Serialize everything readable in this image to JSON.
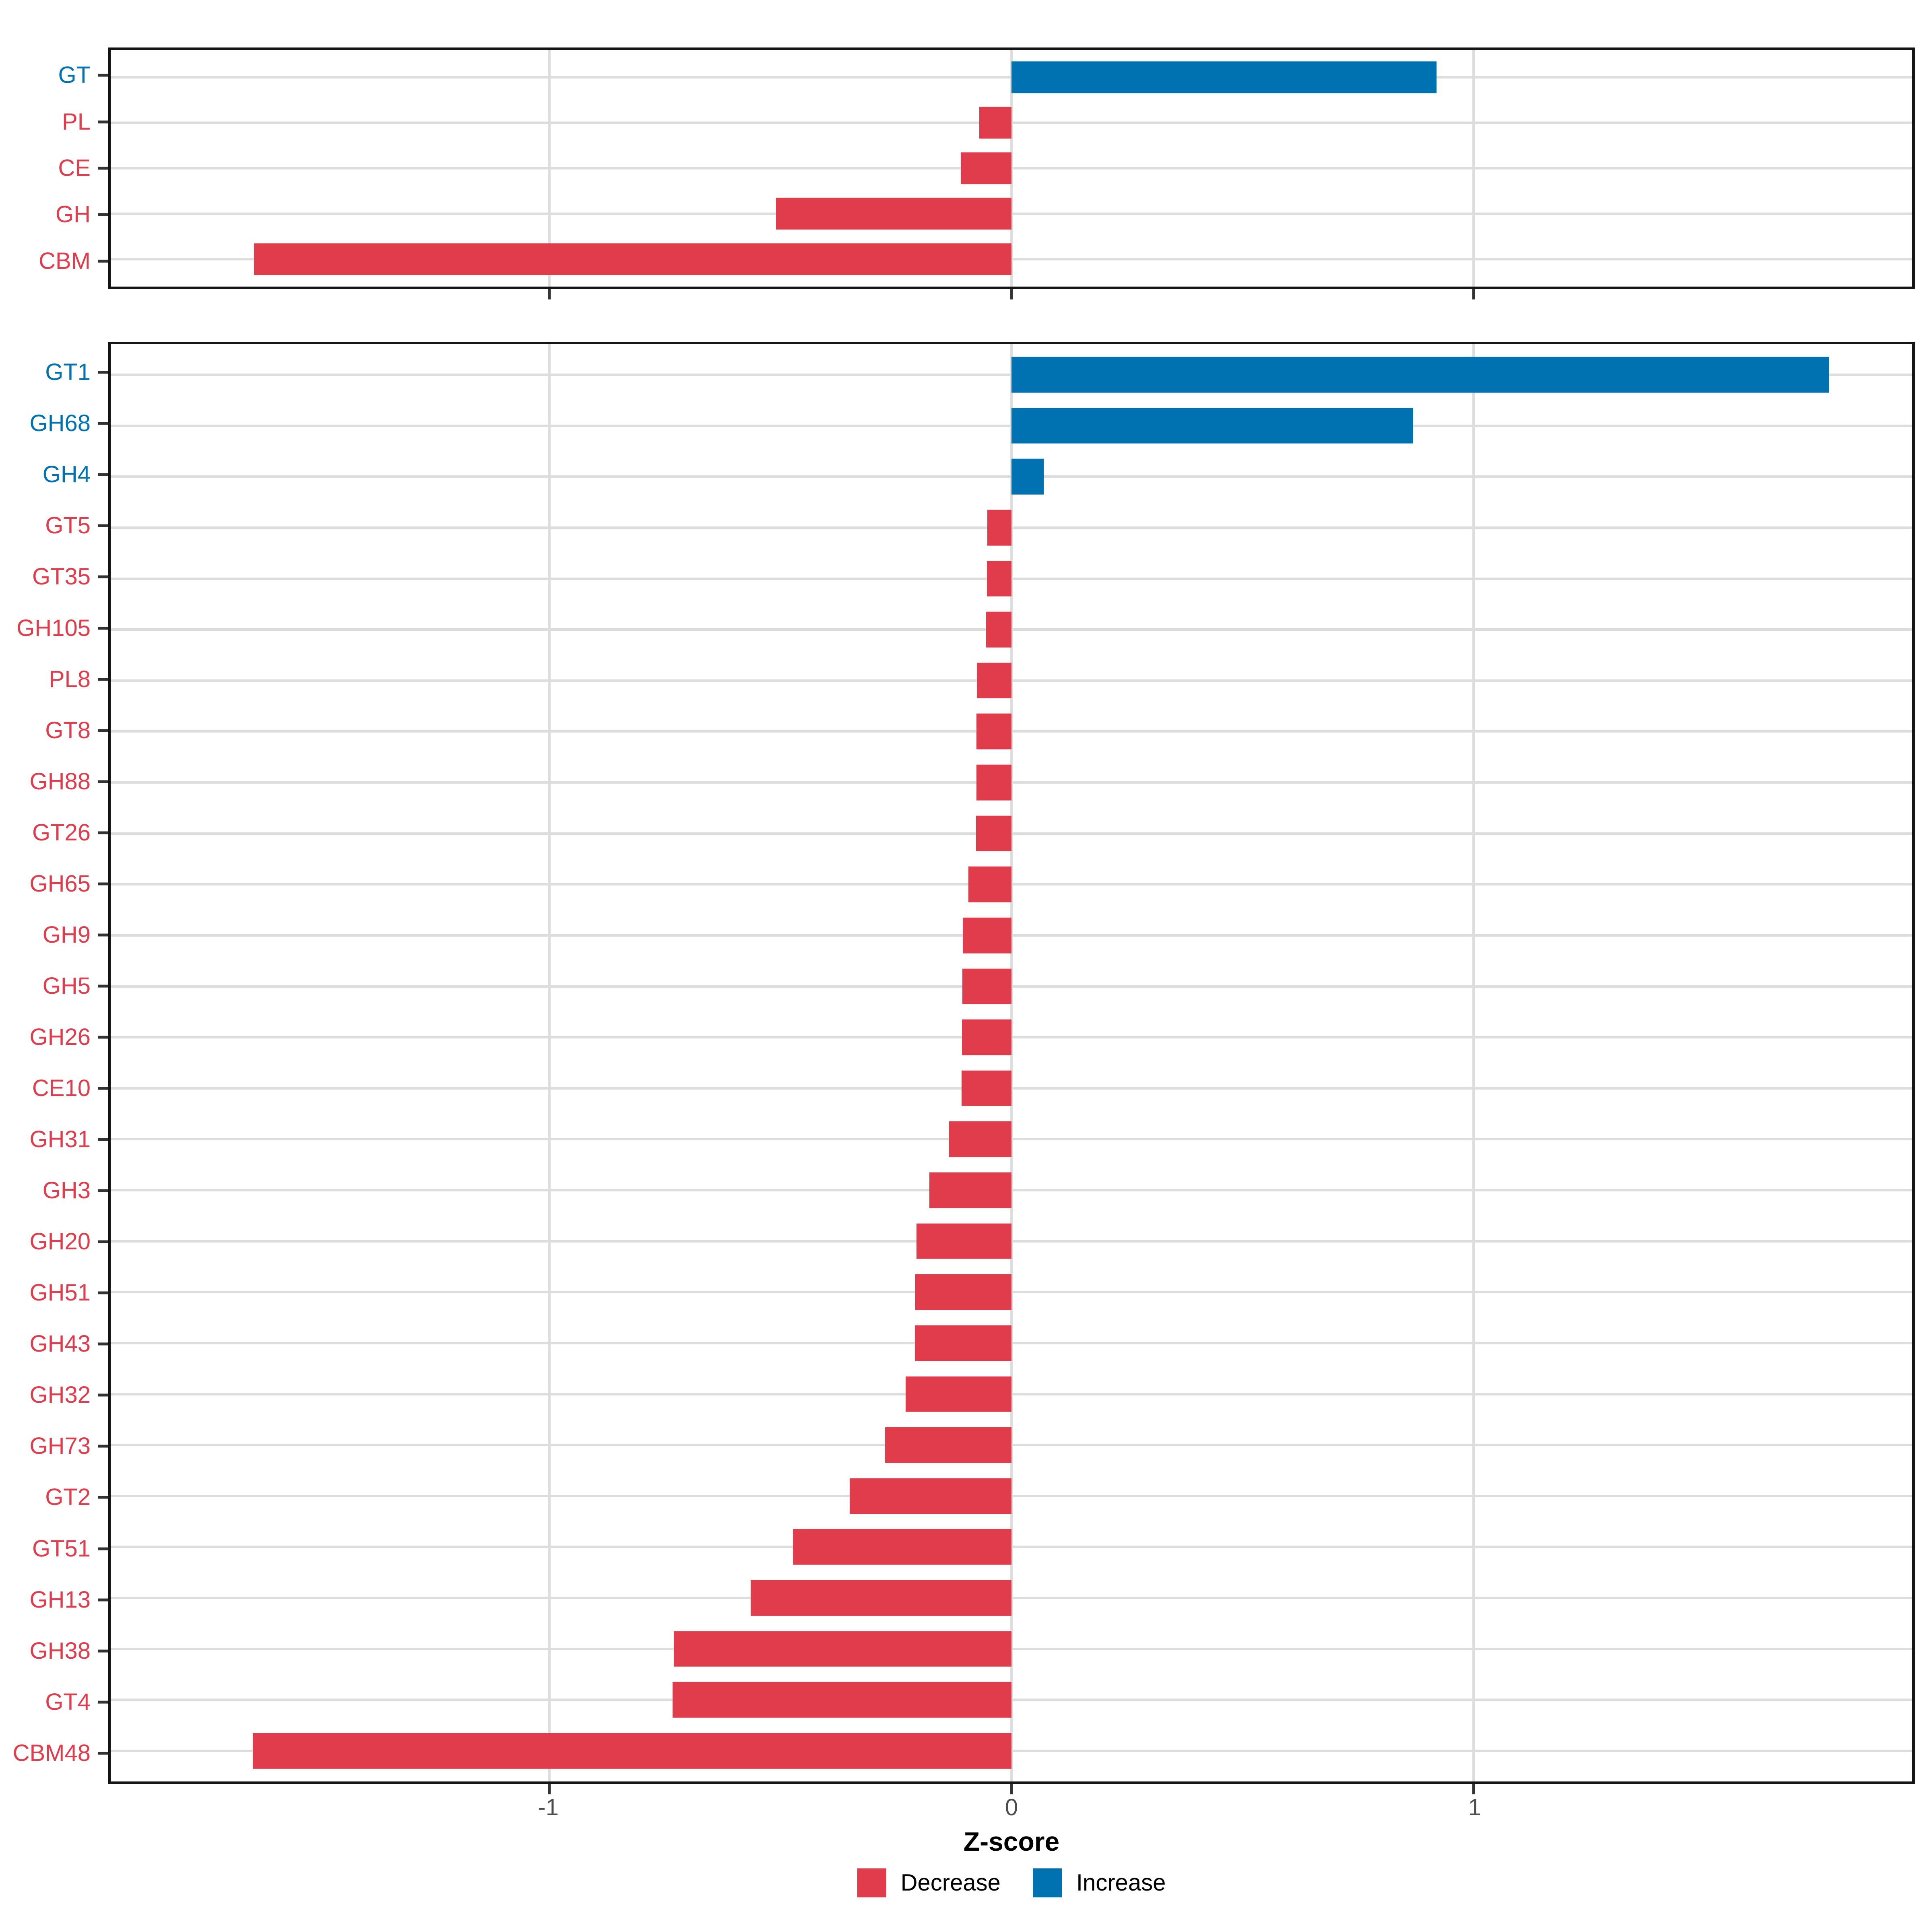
{
  "figure": {
    "background": "#ffffff"
  },
  "colors": {
    "decrease": "#E13C4C",
    "increase": "#0072B2",
    "grid": "#DDDDDD",
    "panel_border": "#151515",
    "axis_tick": "#333333",
    "tick_label": "#4D4D4D",
    "axis_title": "#000000"
  },
  "axis": {
    "title": "Z-score",
    "domain": [
      -1.95,
      1.95
    ],
    "ticks": [
      -1,
      0,
      1
    ],
    "tick_labels": [
      "-1",
      "0",
      "1"
    ]
  },
  "legend": {
    "items": [
      {
        "label": "Decrease",
        "type": "decrease"
      },
      {
        "label": "Increase",
        "type": "increase"
      }
    ]
  },
  "chart_data": [
    {
      "type": "bar",
      "orientation": "horizontal",
      "panel": "cazyme-classes",
      "xlabel": "Z-score",
      "xlim": [
        -1.95,
        1.95
      ],
      "grid": true,
      "categories": [
        "GT",
        "PL",
        "CE",
        "GH",
        "CBM"
      ],
      "values": [
        0.92,
        -0.07,
        -0.11,
        -0.51,
        -1.64
      ]
    },
    {
      "type": "bar",
      "orientation": "horizontal",
      "panel": "cazyme-families",
      "xlabel": "Z-score",
      "xlim": [
        -1.95,
        1.95
      ],
      "grid": true,
      "categories": [
        "GT1",
        "GH68",
        "GH4",
        "GT5",
        "GT35",
        "GH105",
        "PL8",
        "GT8",
        "GH88",
        "GT26",
        "GH65",
        "GH9",
        "GH5",
        "GH26",
        "CE10",
        "GH31",
        "GH3",
        "GH20",
        "GH51",
        "GH43",
        "GH32",
        "GH73",
        "GT2",
        "GT51",
        "GH13",
        "GH38",
        "GT4",
        "CBM48"
      ],
      "values": [
        1.77,
        0.87,
        0.07,
        -0.052,
        -0.053,
        -0.055,
        -0.075,
        -0.076,
        -0.076,
        -0.077,
        -0.093,
        -0.105,
        -0.106,
        -0.107,
        -0.108,
        -0.135,
        -0.178,
        -0.206,
        -0.208,
        -0.209,
        -0.229,
        -0.274,
        -0.35,
        -0.473,
        -0.565,
        -0.731,
        -0.734,
        -1.642
      ]
    }
  ]
}
